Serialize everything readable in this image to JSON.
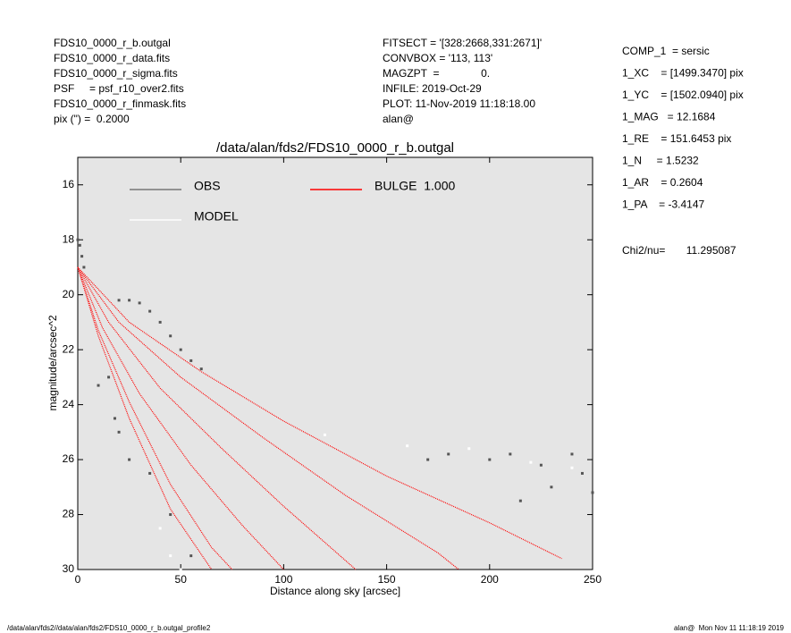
{
  "header_left": [
    "FDS10_0000_r_b.outgal",
    "FDS10_0000_r_data.fits",
    "FDS10_0000_r_sigma.fits",
    "PSF     = psf_r10_over2.fits",
    "FDS10_0000_r_finmask.fits",
    "pix (\") =  0.2000"
  ],
  "header_middle": [
    "FITSECT = '[328:2668,331:2671]'",
    "CONVBOX = '113, 113'",
    "MAGZPT  =              0.",
    "INFILE: 2019-Oct-29",
    "PLOT: 11-Nov-2019 11:18:18.00",
    "alan@"
  ],
  "params": [
    "COMP_1  = sersic",
    "1_XC    = [1499.3470] pix",
    "1_YC    = [1502.0940] pix",
    "1_MAG   = 12.1684",
    "1_RE    = 151.6453 pix",
    "1_N     = 1.5232",
    "1_AR    = 0.2604",
    "1_PA    = -3.4147"
  ],
  "chi2": "Chi2/nu=       11.295087",
  "footer_left": "/data/alan/fds2//data/alan/fds2/FDS10_0000_r_b.outgal_profile2",
  "footer_right": "alan@  Mon Nov 11 11:18:19 2019",
  "chart_data": {
    "type": "scatter",
    "title": "/data/alan/fds2/FDS10_0000_r_b.outgal",
    "xlabel": "Distance along sky [arcsec]",
    "ylabel": "magnitude/arcsec^2",
    "xlim": [
      0,
      250
    ],
    "xticks": [
      0,
      50,
      100,
      150,
      200,
      250
    ],
    "ylim": [
      30,
      15
    ],
    "yticks": [
      16,
      18,
      20,
      22,
      24,
      26,
      28,
      30
    ],
    "series": [
      {
        "name": "OBS",
        "color": "#555555",
        "x": [
          0,
          1,
          2,
          3,
          20,
          25,
          30,
          35,
          40,
          45,
          50,
          55,
          60,
          10,
          15,
          18,
          20,
          25,
          35,
          45,
          55,
          170,
          180,
          200,
          210,
          215,
          225,
          230,
          240,
          245,
          250
        ],
        "values": [
          18.0,
          18.2,
          18.6,
          19.0,
          20.2,
          20.2,
          20.3,
          20.6,
          21.0,
          21.5,
          22.0,
          22.4,
          22.7,
          23.3,
          23.0,
          24.5,
          25.0,
          26.0,
          26.5,
          28.0,
          29.5,
          26.0,
          25.8,
          26.0,
          25.8,
          27.5,
          26.2,
          27.0,
          25.8,
          26.5,
          27.2
        ]
      },
      {
        "name": "MODEL",
        "color": "#ffffff",
        "x": [
          40,
          45,
          50,
          120,
          160,
          190,
          220,
          240
        ],
        "values": [
          28.5,
          29.5,
          30,
          25.1,
          25.5,
          25.6,
          26.1,
          26.3
        ]
      },
      {
        "name": "BULGE  1.000",
        "color": "#ff0000",
        "curves": [
          {
            "x": [
              0,
              25,
              60,
              100,
              150,
              200,
              235
            ],
            "values": [
              19,
              21,
              22.8,
              24.6,
              26.6,
              28.3,
              29.6
            ]
          },
          {
            "x": [
              0,
              20,
              50,
              90,
              130,
              175,
              185
            ],
            "values": [
              19,
              21,
              23,
              25.2,
              27.3,
              29.4,
              30
            ]
          },
          {
            "x": [
              0,
              15,
              40,
              70,
              100,
              135
            ],
            "values": [
              19,
              21,
              23.4,
              25.6,
              27.7,
              30
            ]
          },
          {
            "x": [
              0,
              12,
              30,
              55,
              80,
              100
            ],
            "values": [
              19,
              21.2,
              23.6,
              26.2,
              28.4,
              30
            ]
          },
          {
            "x": [
              0,
              10,
              25,
              45,
              65,
              75
            ],
            "values": [
              19,
              21.3,
              23.9,
              26.9,
              29.2,
              30
            ]
          },
          {
            "x": [
              0,
              10,
              25,
              45,
              65
            ],
            "values": [
              19,
              21.5,
              24.5,
              27.8,
              30
            ]
          }
        ]
      }
    ]
  }
}
